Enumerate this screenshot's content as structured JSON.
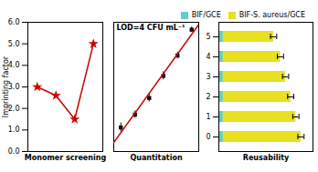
{
  "chart_data": [
    {
      "type": "line",
      "xlabel": "Monomer screening",
      "ylabel": "Imprinting factor",
      "x": [
        1,
        2,
        3,
        4
      ],
      "values": [
        3.0,
        2.6,
        1.5,
        5.0
      ],
      "color": "#cc0000",
      "marker": "star",
      "xlim": [
        0.5,
        4.5
      ],
      "ylim": [
        0,
        6
      ],
      "yticks": [
        0,
        1,
        2,
        3,
        4,
        5,
        6
      ],
      "tick_labels": "y"
    },
    {
      "type": "scatter",
      "xlabel": "Quantitation",
      "annotations": [
        "LOD=4 CFU mL⁻¹"
      ],
      "xlim": [
        0.5,
        6.5
      ],
      "ylim": [
        -1,
        6
      ],
      "tick_labels": false,
      "series": [
        {
          "type": "scatter",
          "color": "#111111",
          "marker": "square",
          "x": [
            1,
            2,
            3,
            4,
            5,
            6
          ],
          "values": [
            0.3,
            1.0,
            1.9,
            3.1,
            4.2,
            5.6
          ],
          "errors": [
            0.25,
            0.2,
            0.22,
            0.22,
            0.18,
            0.15
          ]
        },
        {
          "type": "line",
          "color": "#cc0000",
          "x": [
            0.5,
            6.5
          ],
          "values": [
            -0.51381,
            5.88048
          ]
        }
      ]
    },
    {
      "type": "bar",
      "orientation": "horizontal",
      "xlabel": "Reusability",
      "categories": [
        "0",
        "1",
        "2",
        "3",
        "4",
        "5"
      ],
      "xlim": [
        0,
        5.5
      ],
      "tick_labels": "y",
      "legend": "top-right",
      "series": [
        {
          "name": "BIF/GCE",
          "color": "#5ecfcf",
          "values": [
            0.25,
            0.25,
            0.25,
            0.25,
            0.25,
            0.25
          ]
        },
        {
          "name": "BIF-S. aureus/GCE",
          "color": "#e8e020",
          "values": [
            4.8,
            4.5,
            4.2,
            3.9,
            3.6,
            3.2
          ],
          "errors": [
            0.18,
            0.18,
            0.18,
            0.18,
            0.18,
            0.18
          ]
        }
      ]
    }
  ]
}
